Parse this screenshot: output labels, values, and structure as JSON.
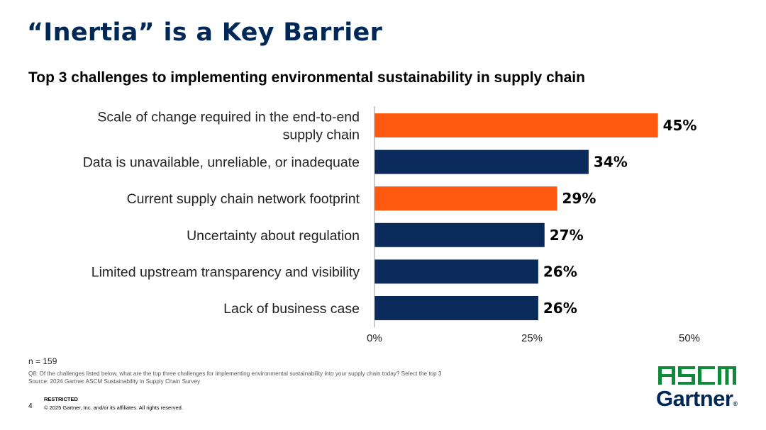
{
  "slide": {
    "title": "“Inertia” is a Key Barrier",
    "subtitle": "Top 3 challenges to implementing environmental sustainability in supply chain"
  },
  "chart_data": {
    "type": "bar",
    "orientation": "horizontal",
    "categories": [
      [
        "Scale of change required in the end-to-end",
        "supply chain"
      ],
      [
        "Data is unavailable, unreliable, or inadequate"
      ],
      [
        "Current supply chain network footprint"
      ],
      [
        "Uncertainty about regulation"
      ],
      [
        "Limited upstream transparency and visibility"
      ],
      [
        "Lack of business case"
      ]
    ],
    "values": [
      45,
      34,
      29,
      27,
      26,
      26
    ],
    "data_labels": [
      "45%",
      "34%",
      "29%",
      "27%",
      "26%",
      "26%"
    ],
    "bar_colors": [
      "#ff5a0f",
      "#0a2a5c",
      "#ff5a0f",
      "#0a2a5c",
      "#0a2a5c",
      "#0a2a5c"
    ],
    "xlim": [
      0,
      50
    ],
    "xticks": [
      0,
      25,
      50
    ],
    "xtick_labels": [
      "0%",
      "25%",
      "50%"
    ],
    "grid": false,
    "xlabel": "",
    "ylabel": ""
  },
  "notes": {
    "n": "n = 159",
    "question": "Q8: Of the challenges listed below, what are the top three challenges for implementing environmental sustainability into your supply chain today? Select the top 3",
    "source": "Source: 2024 Gartner ASCM Sustainability in Supply Chain Survey"
  },
  "footer": {
    "page_number": "4",
    "classification": "RESTRICTED",
    "copyright": "© 2025 Gartner, Inc. and/or its affiliates. All rights reserved."
  },
  "logos": {
    "ascm": "ASCM",
    "ascm_color": "#0f8a3a",
    "gartner": "Gartner",
    "gartner_mark": "®",
    "gartner_color": "#002856"
  }
}
